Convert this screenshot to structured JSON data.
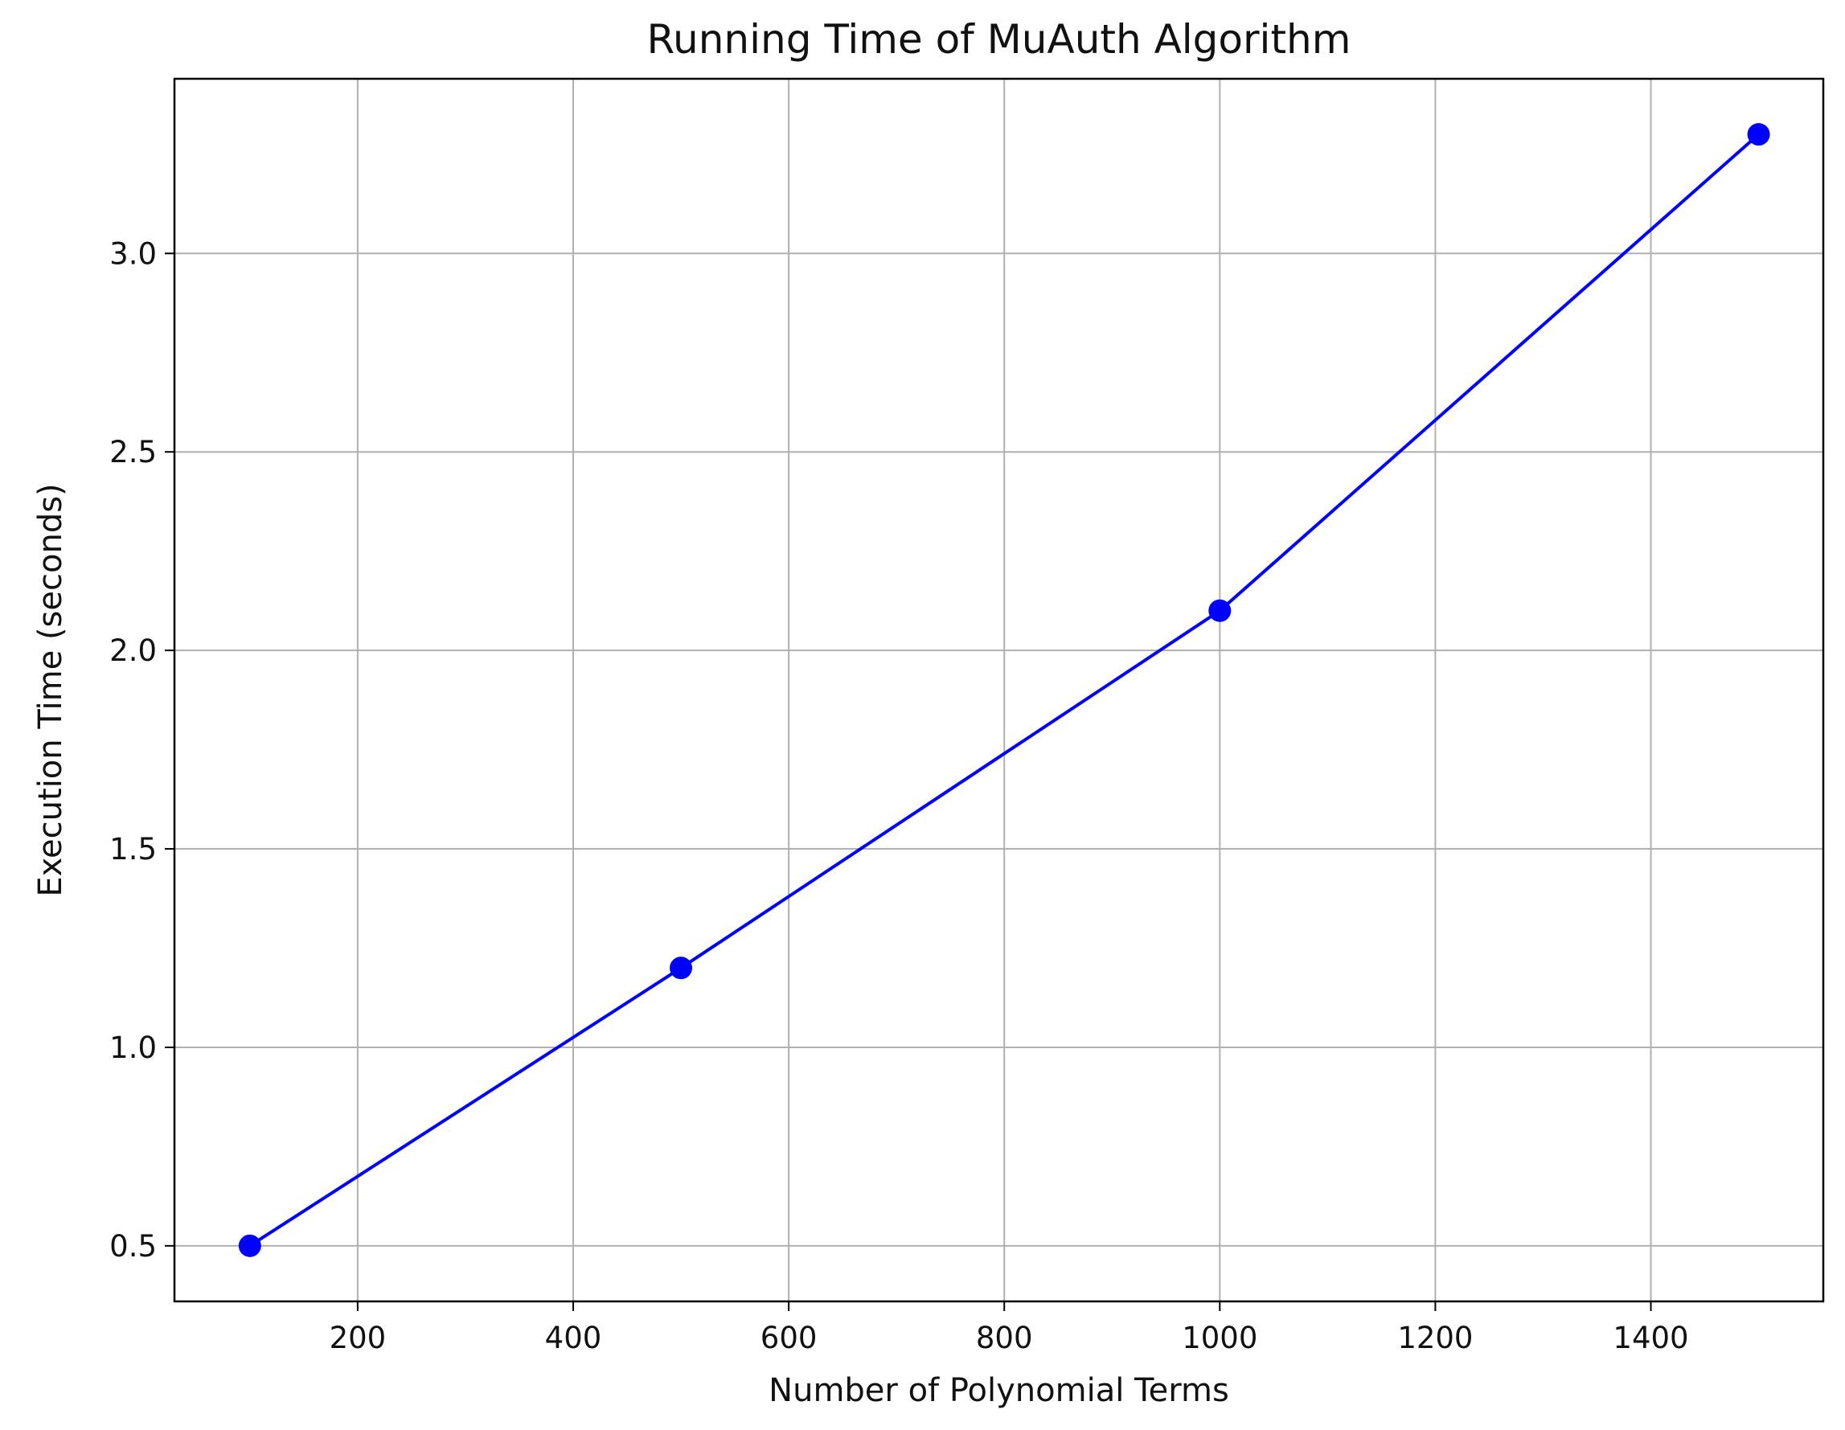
{
  "chart_data": {
    "type": "line",
    "title": "Running Time of MuAuth Algorithm",
    "xlabel": "Number of Polynomial Terms",
    "ylabel": "Execution Time (seconds)",
    "xlim": [
      30,
      1560
    ],
    "ylim": [
      0.36,
      3.44
    ],
    "xticks": [
      200,
      400,
      600,
      800,
      1000,
      1200,
      1400
    ],
    "xtick_labels": [
      "200",
      "400",
      "600",
      "800",
      "1000",
      "1200",
      "1400"
    ],
    "yticks": [
      0.5,
      1.0,
      1.5,
      2.0,
      2.5,
      3.0
    ],
    "ytick_labels": [
      "0.5",
      "1.0",
      "1.5",
      "2.0",
      "2.5",
      "3.0"
    ],
    "grid": true,
    "series": [
      {
        "color": "#0000ff",
        "marker": "circle",
        "x": [
          100,
          500,
          1000,
          1500
        ],
        "y": [
          0.5,
          1.2,
          2.1,
          3.3
        ]
      }
    ]
  }
}
